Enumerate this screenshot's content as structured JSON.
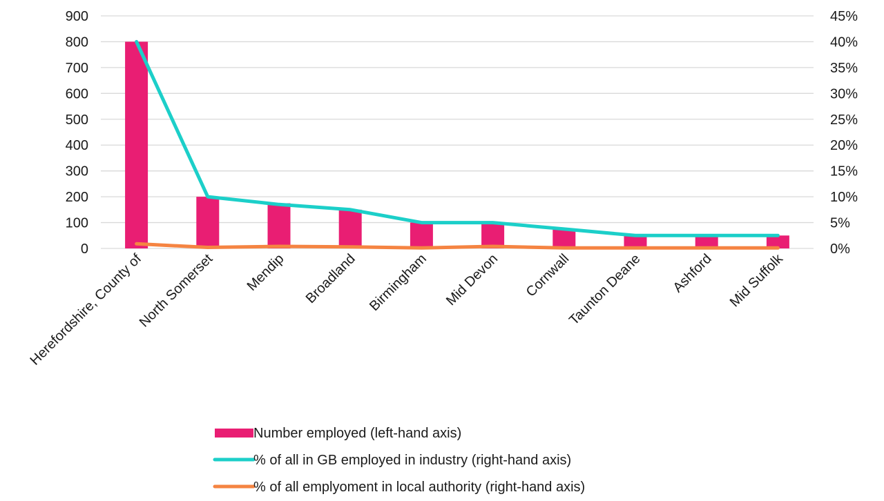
{
  "chart_data": {
    "type": "bar",
    "title": "",
    "xlabel": "",
    "ylabel": "",
    "categories": [
      "Herefordshire, County of",
      "North Somerset",
      "Mendip",
      "Broadland",
      "Birmingham",
      "Mid Devon",
      "Cornwall",
      "Taunton Deane",
      "Ashford",
      "Mid Suffolk"
    ],
    "series": [
      {
        "name": "Number employed (left-hand axis)",
        "kind": "bar",
        "axis": "left",
        "color": "#E91E73",
        "values": [
          800,
          200,
          175,
          150,
          100,
          100,
          75,
          50,
          50,
          50
        ]
      },
      {
        "name": "% of all in GB employed in industry (right-hand axis)",
        "kind": "line",
        "axis": "right",
        "color": "#1CCFC9",
        "values": [
          40,
          10,
          8.5,
          7.5,
          5,
          5,
          3.75,
          2.5,
          2.5,
          2.5
        ]
      },
      {
        "name": "% of all emplyoment in local authority (right-hand axis)",
        "kind": "line",
        "axis": "right",
        "color": "#F58442",
        "values": [
          0.9,
          0.2,
          0.4,
          0.3,
          0.1,
          0.4,
          0.1,
          0.1,
          0.1,
          0.1
        ]
      }
    ],
    "ylim": [
      0,
      900
    ],
    "yticks": [
      "0",
      "100",
      "200",
      "300",
      "400",
      "500",
      "600",
      "700",
      "800",
      "900"
    ],
    "y2lim": [
      0,
      45
    ],
    "y2ticks": [
      "0%",
      "5%",
      "10%",
      "15%",
      "20%",
      "25%",
      "30%",
      "35%",
      "40%",
      "45%"
    ],
    "grid": true,
    "legend": "bottom-center",
    "gridColor": "#d9d9d9"
  }
}
